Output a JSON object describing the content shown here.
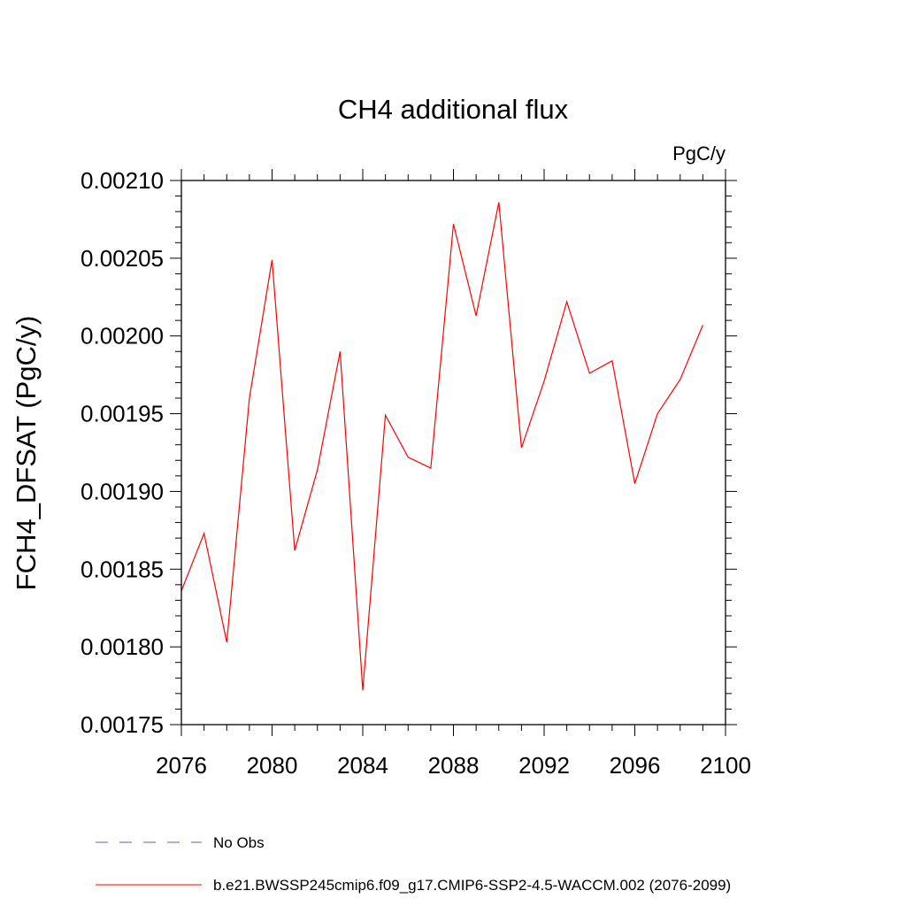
{
  "chart_data": {
    "type": "line",
    "title": "CH4 additional flux",
    "units_label": "PgC/y",
    "xlabel": "",
    "ylabel": "FCH4_DFSAT  (PgC/y)",
    "xlim": [
      2076,
      2100
    ],
    "ylim": [
      0.00175,
      0.0021
    ],
    "x_ticks": [
      "2076",
      "2080",
      "2084",
      "2088",
      "2092",
      "2096",
      "2100"
    ],
    "y_ticks": [
      "0.00175",
      "0.00180",
      "0.00185",
      "0.00190",
      "0.00195",
      "0.00200",
      "0.00205",
      "0.00210"
    ],
    "grid": false,
    "legend_position": "bottom",
    "series": [
      {
        "name": "b.e21.BWSSP245cmip6.f09_g17.CMIP6-SSP2-4.5-WACCM.002 (2076-2099)",
        "color": "#ff0000",
        "style": "solid",
        "x": [
          2076,
          2077,
          2078,
          2079,
          2080,
          2081,
          2082,
          2083,
          2084,
          2085,
          2086,
          2087,
          2088,
          2089,
          2090,
          2091,
          2092,
          2093,
          2094,
          2095,
          2096,
          2097,
          2098,
          2099
        ],
        "y": [
          0.001836,
          0.001873,
          0.001803,
          0.00196,
          0.002049,
          0.001862,
          0.001914,
          0.00199,
          0.001772,
          0.001949,
          0.001922,
          0.001915,
          0.002072,
          0.002013,
          0.002086,
          0.001928,
          0.001971,
          0.002022,
          0.001976,
          0.001984,
          0.001905,
          0.00195,
          0.001972,
          0.002007
        ]
      }
    ],
    "legend": [
      {
        "label": "No Obs",
        "color": "#6a5acd",
        "style": "dashed"
      },
      {
        "label": "b.e21.BWSSP245cmip6.f09_g17.CMIP6-SSP2-4.5-WACCM.002 (2076-2099)",
        "color": "#ff0000",
        "style": "solid"
      }
    ]
  }
}
